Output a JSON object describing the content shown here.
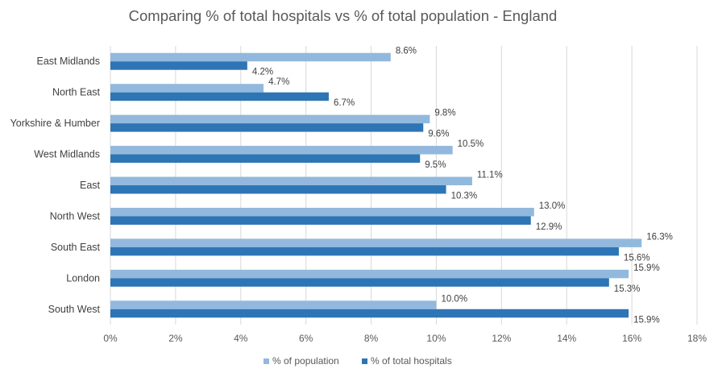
{
  "chart_data": {
    "type": "bar",
    "orientation": "horizontal",
    "title": "Comparing % of total hospitals vs % of total population - England",
    "categories": [
      "East Midlands",
      "North East",
      "Yorkshire & Humber",
      "West Midlands",
      "East",
      "North West",
      "South East",
      "London",
      "South West"
    ],
    "series": [
      {
        "name": "% of population",
        "color": "#92b9dd",
        "values": [
          8.6,
          4.7,
          9.8,
          10.5,
          11.1,
          13.0,
          16.3,
          15.9,
          10.0
        ],
        "labels": [
          "8.6%",
          "4.7%",
          "9.8%",
          "10.5%",
          "11.1%",
          "13.0%",
          "16.3%",
          "15.9%",
          "10.0%"
        ]
      },
      {
        "name": "% of total hospitals",
        "color": "#2e75b6",
        "values": [
          4.2,
          6.7,
          9.6,
          9.5,
          10.3,
          12.9,
          15.6,
          15.3,
          15.9
        ],
        "labels": [
          "4.2%",
          "6.7%",
          "9.6%",
          "9.5%",
          "10.3%",
          "12.9%",
          "15.6%",
          "15.3%",
          "15.9%"
        ]
      }
    ],
    "xlim": [
      0,
      18
    ],
    "xticks": [
      "0%",
      "2%",
      "4%",
      "6%",
      "8%",
      "10%",
      "12%",
      "14%",
      "16%",
      "18%"
    ],
    "grid": true,
    "legend_position": "bottom"
  }
}
